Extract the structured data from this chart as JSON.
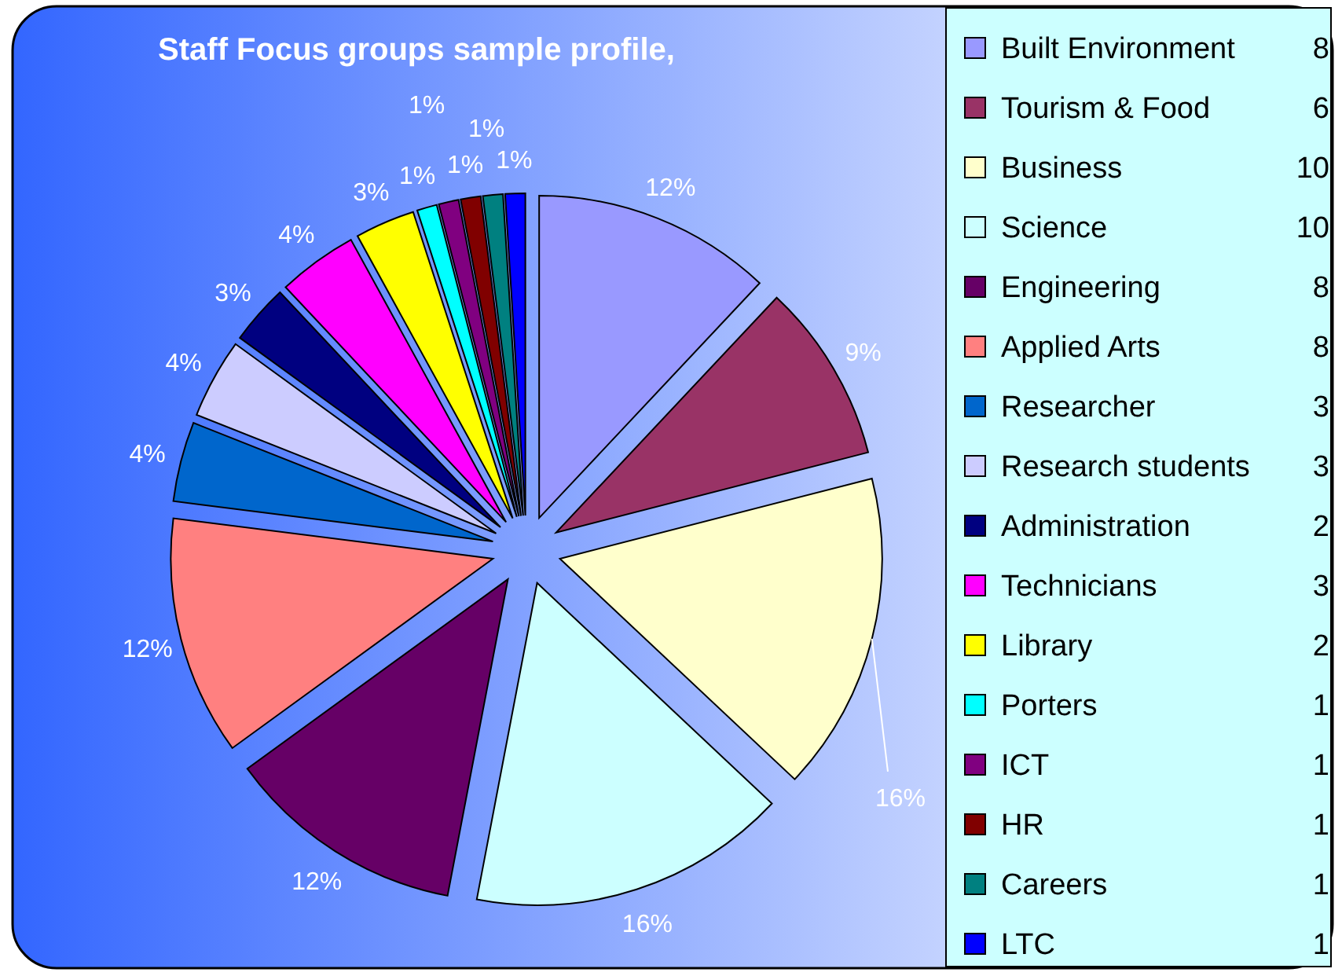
{
  "chart_data": {
    "type": "pie",
    "title": "Staff Focus groups sample profile,",
    "categories": [
      "Built Environment",
      "Tourism & Food",
      "Business",
      "Science",
      "Engineering",
      "Applied Arts",
      "Researcher",
      "Research students",
      "Administration",
      "Technicians",
      "Library",
      "Porters",
      "ICT",
      "HR",
      "Careers",
      "LTC"
    ],
    "values": [
      12,
      9,
      16,
      16,
      12,
      12,
      4,
      4,
      3,
      4,
      3,
      1,
      1,
      1,
      1,
      1
    ],
    "value_labels": [
      "12%",
      "9%",
      "16%",
      "16%",
      "12%",
      "12%",
      "4%",
      "4%",
      "3%",
      "4%",
      "3%",
      "1%",
      "1%",
      "1%",
      "1%",
      "1%"
    ],
    "colors": [
      "#9999ff",
      "#993366",
      "#ffffcc",
      "#ccffff",
      "#660066",
      "#ff8080",
      "#0066cc",
      "#ccccff",
      "#000080",
      "#ff00ff",
      "#ffff00",
      "#00ffff",
      "#800080",
      "#800000",
      "#008080",
      "#0000ff"
    ],
    "annotations": [
      "8",
      "6",
      "10",
      "10",
      "8",
      "8",
      "3",
      "3",
      "2",
      "3",
      "2",
      "1",
      "1",
      "1",
      "1",
      "1"
    ],
    "legend": "right"
  }
}
